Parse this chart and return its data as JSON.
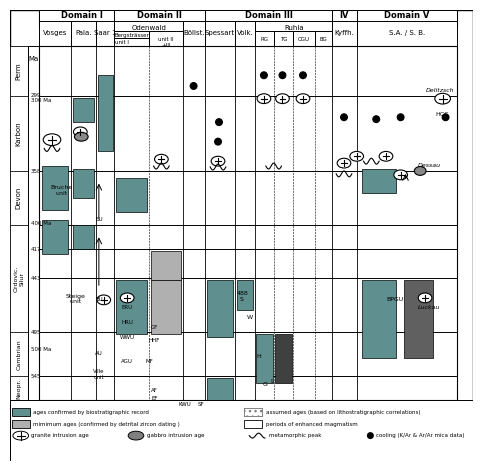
{
  "title": "",
  "bg_color": "#ffffff",
  "grid_color": "#000000",
  "domain_headers": [
    "Domain I",
    "Domain II",
    "Domain III",
    "IV",
    "Domain V"
  ],
  "col_headers": [
    "Vosges",
    "Pala.",
    "Saar 1",
    "Odenwald",
    "Böllst.",
    "Spessart",
    "Volk.",
    "RG",
    "TG",
    "CGU",
    "BG",
    "Kyffh.",
    "S.A./S.B."
  ],
  "sub_headers": [
    "Bergsträsser\nunit I",
    "unit II\n+III"
  ],
  "era_labels": [
    "Perm",
    "Karbon",
    "Devon",
    "Ordovic./Silur",
    "Cambrian",
    "Neopr."
  ],
  "time_labels": [
    "Ma",
    "299",
    "300 Ma",
    "358",
    "400 Ma",
    "417",
    "443",
    "495",
    "500 Ma",
    "545"
  ],
  "teal_color": "#5f8f8f",
  "light_gray": "#d0d0d0",
  "medium_gray": "#aaaaaa"
}
